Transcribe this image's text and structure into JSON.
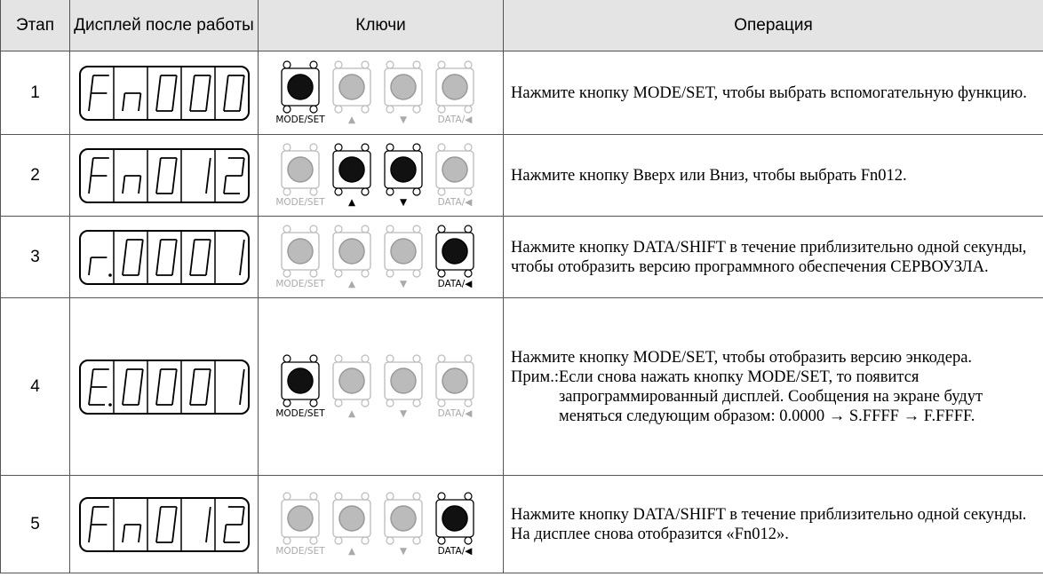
{
  "table": {
    "header": [
      "Этап",
      "Дисплей после работы",
      "Ключи",
      "Операция"
    ],
    "key_labels": [
      "MODE/SET",
      "▲",
      "▼",
      "DATA/◀"
    ],
    "rows": [
      {
        "step": "1",
        "display": "Fn000",
        "pressed": [
          0
        ],
        "operation": "Нажмите кнопку MODE/SET, чтобы выбрать вспомогательную функцию."
      },
      {
        "step": "2",
        "display": "Fn012",
        "pressed": [
          1,
          2
        ],
        "operation": "Нажмите кнопку Вверх или Вниз, чтобы выбрать Fn012."
      },
      {
        "step": "3",
        "display": "r.0001",
        "pressed": [
          3
        ],
        "operation": "Нажмите кнопку DATA/SHIFT в течение приблизительно одной секунды, чтобы отобразить версию программного обеспечения СЕРВОУЗЛА."
      },
      {
        "step": "4",
        "display": "E.0001",
        "pressed": [
          0
        ],
        "operation": "Нажмите кнопку MODE/SET, чтобы отобразить версию энкодера.",
        "note_label": "Прим.:",
        "note": "Если снова нажать кнопку MODE/SET, то появится запрограммированный дисплей. Сообщения на экране будут меняться следующим образом: 0.0000 → S.FFFF → F.FFFF."
      },
      {
        "step": "5",
        "display": "Fn012",
        "pressed": [
          3
        ],
        "operation": "Нажмите кнопку DATA/SHIFT в течение приблизительно одной секунды. На дисплее снова отобразится «Fn012»."
      }
    ]
  }
}
